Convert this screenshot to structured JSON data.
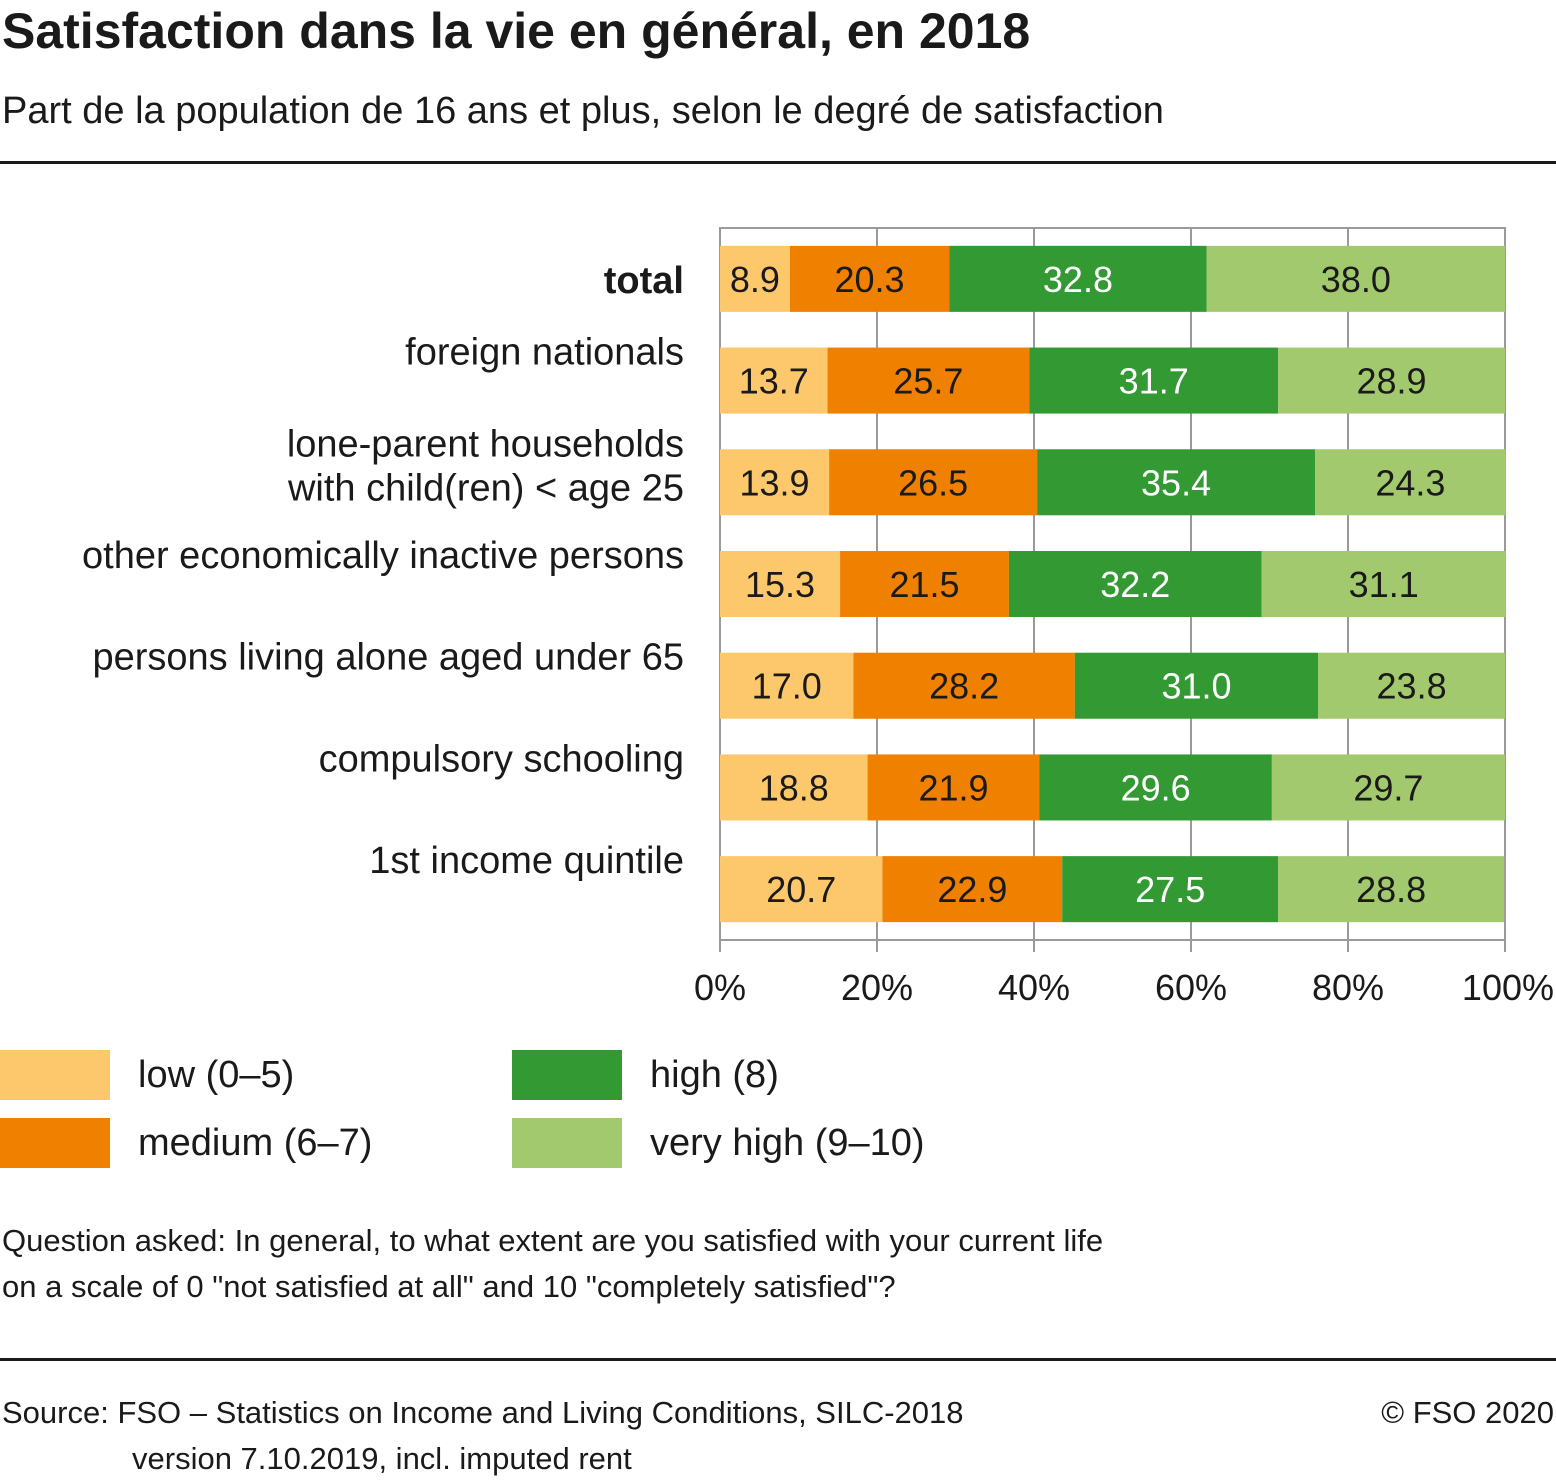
{
  "chart_data": {
    "type": "bar",
    "orientation": "horizontal",
    "stacked": true,
    "title": "Satisfaction dans la vie en général, en 2018",
    "subtitle": "Part de la population de 16 ans et plus, selon le degré de satisfaction",
    "categories": [
      [
        "total"
      ],
      [
        "foreign nationals"
      ],
      [
        "lone-parent households",
        "with child(ren) < age 25"
      ],
      [
        "other economically inactive persons"
      ],
      [
        "persons living alone aged under 65"
      ],
      [
        "compulsory schooling"
      ],
      [
        "1st income quintile"
      ]
    ],
    "series": [
      {
        "name": "low (0–5)",
        "color": "#fdc86b",
        "values": [
          8.9,
          13.7,
          13.9,
          15.3,
          17.0,
          18.8,
          20.7
        ]
      },
      {
        "name": "medium (6–7)",
        "color": "#f08000",
        "values": [
          20.3,
          25.7,
          26.5,
          21.5,
          28.2,
          21.9,
          22.9
        ]
      },
      {
        "name": "high (8)",
        "color": "#339933",
        "values": [
          32.8,
          31.7,
          35.4,
          32.2,
          31.0,
          29.6,
          27.5
        ]
      },
      {
        "name": "very high (9–10)",
        "color": "#a3c96e",
        "values": [
          38.0,
          28.9,
          24.3,
          31.1,
          23.8,
          29.7,
          28.8
        ]
      }
    ],
    "x_ticks": [
      "0%",
      "20%",
      "40%",
      "60%",
      "80%",
      "100%"
    ],
    "xlim": [
      0,
      100
    ],
    "grid": true,
    "legend_position": "bottom"
  },
  "note": {
    "line1": "Question asked: In general, to what extent are you satisfied with your current life",
    "line2": "on a scale of 0 \"not satisfied at all\" and 10 \"completely satisfied\"?"
  },
  "source": {
    "line1": "Source: FSO – Statistics on Income and Living Conditions, SILC-2018",
    "line2": "version 7.10.2019, incl. imputed rent"
  },
  "copyright": "© FSO 2020"
}
